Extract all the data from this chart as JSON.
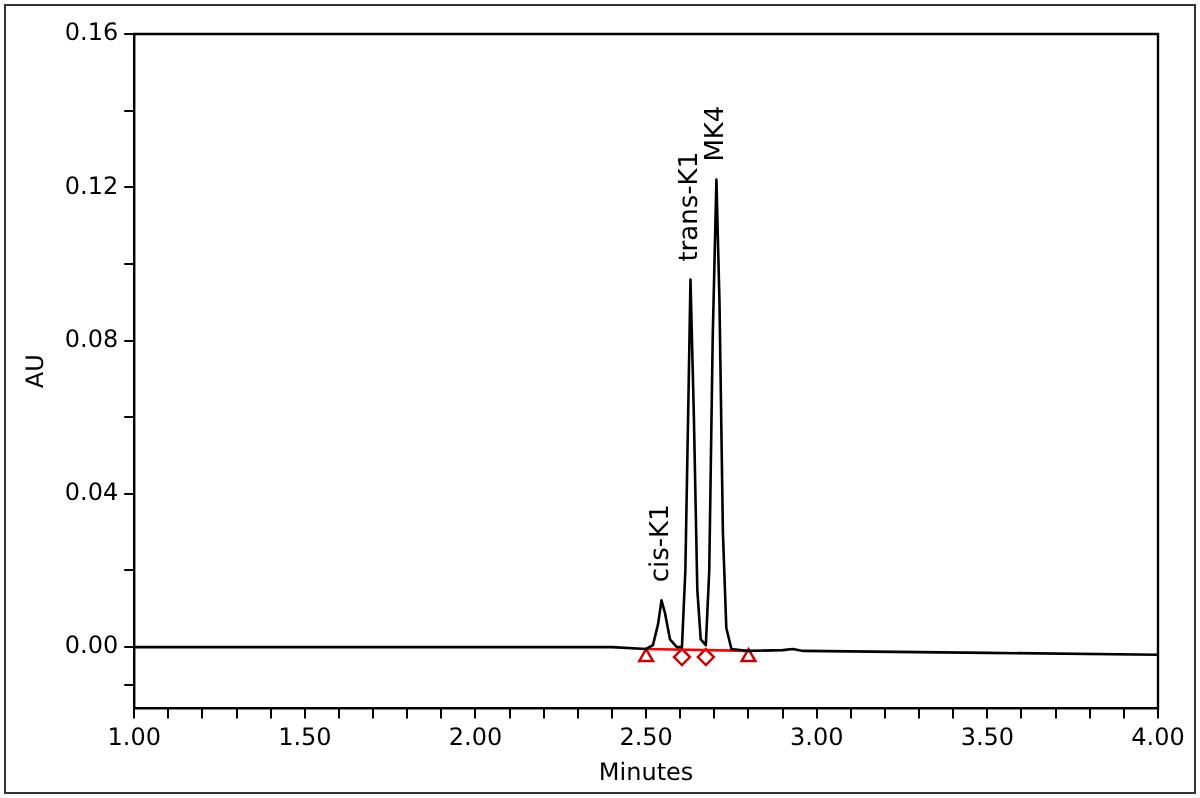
{
  "chart_data": {
    "type": "line",
    "xlabel": "Minutes",
    "ylabel": "AU",
    "xlim": [
      1.0,
      4.0
    ],
    "ylim": [
      -0.016,
      0.16
    ],
    "xticks": [
      {
        "value": 1.0,
        "label": "1.00"
      },
      {
        "value": 1.1,
        "label": null
      },
      {
        "value": 1.2,
        "label": null
      },
      {
        "value": 1.3,
        "label": null
      },
      {
        "value": 1.4,
        "label": null
      },
      {
        "value": 1.5,
        "label": "1.50"
      },
      {
        "value": 1.6,
        "label": null
      },
      {
        "value": 1.7,
        "label": null
      },
      {
        "value": 1.8,
        "label": null
      },
      {
        "value": 1.9,
        "label": null
      },
      {
        "value": 2.0,
        "label": "2.00"
      },
      {
        "value": 2.1,
        "label": null
      },
      {
        "value": 2.2,
        "label": null
      },
      {
        "value": 2.3,
        "label": null
      },
      {
        "value": 2.4,
        "label": null
      },
      {
        "value": 2.5,
        "label": "2.50"
      },
      {
        "value": 2.6,
        "label": null
      },
      {
        "value": 2.7,
        "label": null
      },
      {
        "value": 2.8,
        "label": null
      },
      {
        "value": 2.9,
        "label": null
      },
      {
        "value": 3.0,
        "label": "3.00"
      },
      {
        "value": 3.1,
        "label": null
      },
      {
        "value": 3.2,
        "label": null
      },
      {
        "value": 3.3,
        "label": null
      },
      {
        "value": 3.4,
        "label": null
      },
      {
        "value": 3.5,
        "label": "3.50"
      },
      {
        "value": 3.6,
        "label": null
      },
      {
        "value": 3.7,
        "label": null
      },
      {
        "value": 3.8,
        "label": null
      },
      {
        "value": 3.9,
        "label": null
      },
      {
        "value": 4.0,
        "label": "4.00"
      }
    ],
    "yticks": [
      {
        "value": -0.01,
        "label": null
      },
      {
        "value": 0,
        "label": "0.00"
      },
      {
        "value": 0.02,
        "label": null
      },
      {
        "value": 0.04,
        "label": "0.04"
      },
      {
        "value": 0.06,
        "label": null
      },
      {
        "value": 0.08,
        "label": "0.08"
      },
      {
        "value": 0.1,
        "label": null
      },
      {
        "value": 0.12,
        "label": "0.12"
      },
      {
        "value": 0.14,
        "label": null
      },
      {
        "value": 0.16,
        "label": "0.16"
      }
    ],
    "grid": false,
    "legend": false,
    "marker": "none",
    "line_style": "solid",
    "series": [
      {
        "color": "#000000",
        "x": [
          1.0,
          2.0,
          2.4,
          2.5,
          2.52,
          2.535,
          2.545,
          2.555,
          2.57,
          2.59,
          2.605,
          2.615,
          2.625,
          2.63,
          2.64,
          2.65,
          2.66,
          2.675,
          2.685,
          2.695,
          2.706,
          2.715,
          2.725,
          2.735,
          2.75,
          2.8,
          2.9,
          2.93,
          2.96,
          3.5,
          4.0
        ],
        "values": [
          0,
          0,
          0,
          -0.0005,
          0.0005,
          0.006,
          0.0122,
          0.009,
          0.002,
          0,
          0,
          0.02,
          0.07,
          0.0959,
          0.06,
          0.015,
          0.002,
          0.0005,
          0.02,
          0.08,
          0.122,
          0.09,
          0.03,
          0.005,
          -0.0005,
          -0.001,
          -0.0008,
          -0.0005,
          -0.001,
          -0.0015,
          -0.002
        ]
      },
      {
        "color": "#ff0000",
        "x": [
          2.5,
          2.8
        ],
        "values": [
          -0.0005,
          -0.001
        ]
      },
      {
        "type": "scatter",
        "marker": "triangle",
        "color": "#cc0000",
        "x": [
          2.5,
          2.8
        ],
        "values": [
          -0.0026,
          -0.0026
        ]
      },
      {
        "type": "scatter",
        "marker": "diamond",
        "color": "#cc0000",
        "x": [
          2.605,
          2.675
        ],
        "values": [
          -0.0026,
          -0.0026
        ]
      }
    ],
    "annotations": [
      {
        "text": "cis-K1",
        "x": 2.545,
        "y": 0.0122
      },
      {
        "text": "trans-K1",
        "x": 2.63,
        "y": 0.0959
      },
      {
        "text": "MK4",
        "x": 2.706,
        "y": 0.122
      }
    ]
  }
}
